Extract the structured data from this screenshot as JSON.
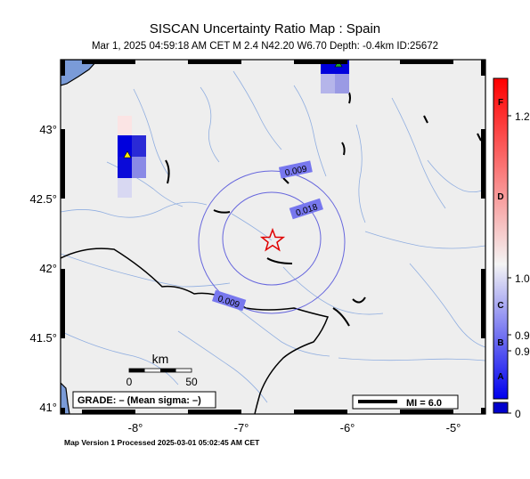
{
  "header": {
    "title": "SISCAN Uncertainty Ratio Map : Spain",
    "subtitle": "Mar  1, 2025 04:59:18 AM CET   M 2.4    N42.20 W6.70   Depth: -0.4km   ID:25672"
  },
  "map": {
    "lat_labels": [
      "43°",
      "42.5°",
      "42°",
      "41.5°",
      "41°"
    ],
    "lon_labels": [
      "-8°",
      "-7°",
      "-6°",
      "-5°"
    ],
    "contours": [
      "0.009",
      "0.018",
      "0.009"
    ],
    "scale": {
      "title": "km",
      "min": "0",
      "max": "50"
    },
    "grade_text": "GRADE: – (Mean sigma: –)",
    "mi_text": "MI = 6.0",
    "epicenter": {
      "lat": 42.2,
      "lon": -6.7
    }
  },
  "colorbar": {
    "grades": [
      "F",
      "D",
      "C",
      "B",
      "A"
    ],
    "values": [
      "1.2",
      "1.0",
      "0.9",
      "0.9",
      "0"
    ],
    "colors": {
      "top": "#ff0000",
      "mid": "#f4f4f4",
      "bottom": "#0000ee",
      "base": "#0000cc"
    }
  },
  "footer": "Map Version 1 Processed 2025-03-01 05:02:45 AM CET"
}
